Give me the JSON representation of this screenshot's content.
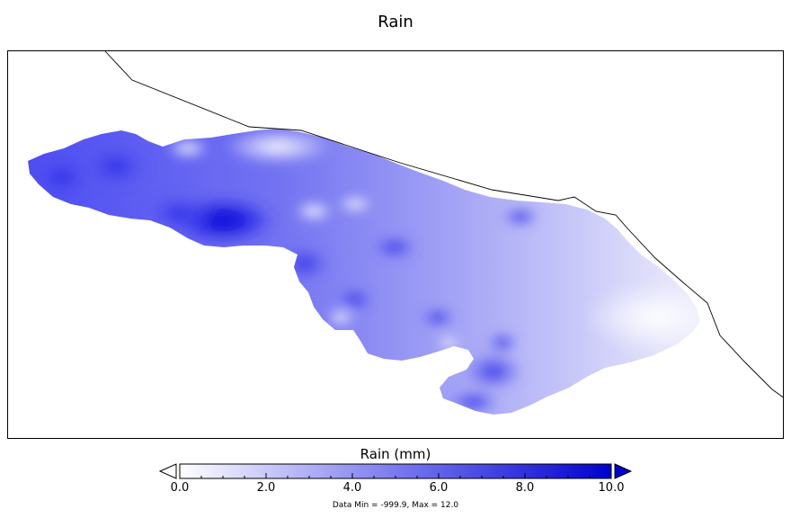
{
  "title": "Rain",
  "colorbar": {
    "label": "Rain (mm)",
    "min": 0.0,
    "max": 10.0,
    "ticks": [
      "0.0",
      "2.0",
      "4.0",
      "6.0",
      "8.0",
      "10.0"
    ],
    "extend": "both",
    "colors": [
      "#ffffff",
      "#0000d0"
    ]
  },
  "footnote": "Data Min = -999.9, Max = 12.0"
}
